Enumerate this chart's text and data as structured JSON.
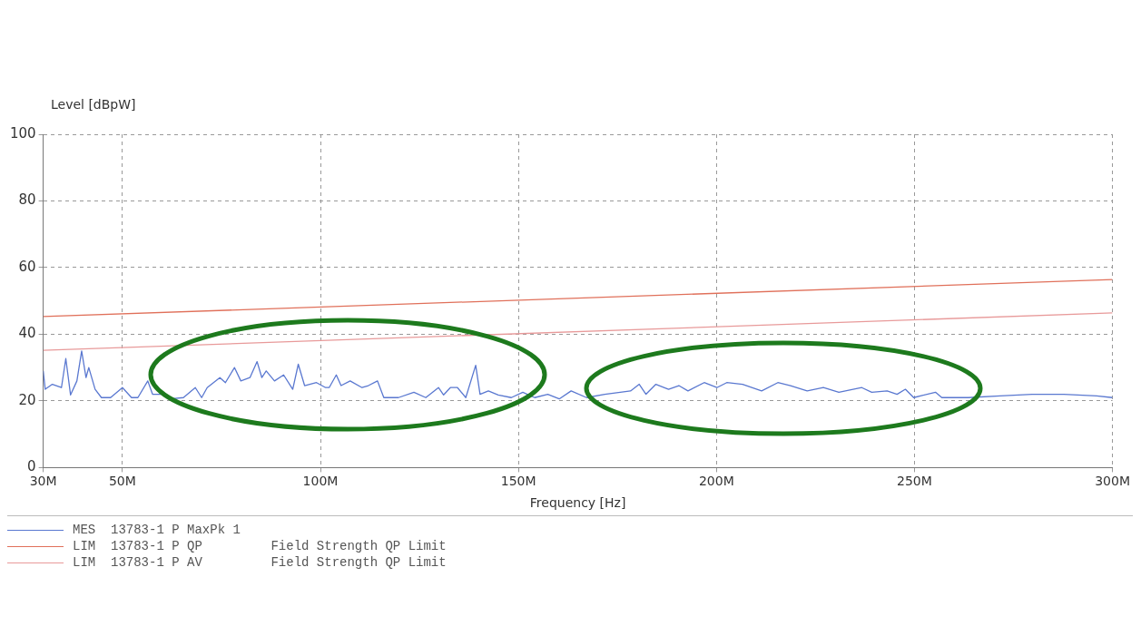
{
  "chart_data": {
    "type": "line",
    "xlabel": "Frequency [Hz]",
    "ylabel": "Level [dBpW]",
    "xlim": [
      30,
      300
    ],
    "ylim": [
      0,
      100
    ],
    "xticks": [
      {
        "value": 30,
        "label": "30M"
      },
      {
        "value": 50,
        "label": "50M"
      },
      {
        "value": 100,
        "label": "100M"
      },
      {
        "value": 150,
        "label": "150M"
      },
      {
        "value": 200,
        "label": "200M"
      },
      {
        "value": 250,
        "label": "250M"
      },
      {
        "value": 300,
        "label": "300M"
      }
    ],
    "yticks": [
      0,
      20,
      40,
      60,
      80,
      100
    ],
    "grid": true,
    "legend": "bottom",
    "marker": "none",
    "line_style": "solid",
    "series": [
      {
        "name": "MES  13783-1 P MaxPk 1",
        "color": "#5a78d0",
        "x": [
          30,
          30.5,
          32.3,
          34.6,
          35.7,
          36.9,
          38.5,
          39.7,
          40.8,
          41.5,
          43.1,
          44.7,
          47,
          50,
          52.3,
          53.9,
          56.4,
          57.6,
          59.9,
          62.2,
          65.4,
          68.4,
          70,
          71.4,
          74.6,
          76,
          78.3,
          79.9,
          82.2,
          84,
          85.2,
          86.3,
          88.4,
          90.7,
          93,
          94.4,
          96,
          99,
          101.3,
          102.2,
          104,
          105.2,
          107.5,
          110.5,
          112.1,
          114.4,
          116,
          119.7,
          123.6,
          126.6,
          129.8,
          131.1,
          132.8,
          134.6,
          136.7,
          139.2,
          140.3,
          142.4,
          144.9,
          148.2,
          151.1,
          154.1,
          157.4,
          160.3,
          163.3,
          167.2,
          171.8,
          178.3,
          180.5,
          182.2,
          184.7,
          187.9,
          190.5,
          192.8,
          196.9,
          200.1,
          202.6,
          206.6,
          211.4,
          215.5,
          218.7,
          222.9,
          227,
          230.9,
          236.7,
          239.2,
          243.1,
          245.6,
          247.7,
          249.8,
          255.3,
          256.9,
          263.6,
          271.6,
          279.7,
          287.7,
          296,
          300
        ],
        "values": [
          29,
          23.5,
          25,
          24,
          32.7,
          21.8,
          26,
          35,
          27,
          30,
          23.5,
          21,
          21,
          24,
          21,
          21,
          26,
          22,
          22,
          20.6,
          21,
          24,
          21,
          24,
          27,
          25.5,
          30,
          26,
          27,
          31.8,
          27,
          29,
          26,
          27.8,
          23.5,
          31,
          24.6,
          25.5,
          24,
          24,
          27.8,
          24.6,
          26,
          24,
          24.6,
          26,
          21,
          21,
          22.6,
          21,
          24,
          21.8,
          24,
          24,
          21,
          30.7,
          22,
          23,
          21.8,
          21,
          22.6,
          21,
          22,
          20.6,
          23,
          21,
          22,
          23,
          25,
          22,
          25,
          23.5,
          24.6,
          23,
          25.5,
          24,
          25.5,
          25,
          23,
          25.5,
          24.6,
          23,
          24,
          22.6,
          24,
          22.6,
          23,
          22,
          23.5,
          21,
          22.6,
          21,
          21,
          21.5,
          22,
          22,
          21.5,
          21
        ]
      },
      {
        "name": "LIM  13783-1 P QP         Field Strength QP Limit",
        "color": "#e0705a",
        "x": [
          30,
          300
        ],
        "values": [
          45.3,
          56.4
        ]
      },
      {
        "name": "LIM  13783-1 P AV         Field Strength QP Limit",
        "color": "#e89a9a",
        "x": [
          30,
          300
        ],
        "values": [
          35.2,
          46.4
        ]
      }
    ]
  }
}
